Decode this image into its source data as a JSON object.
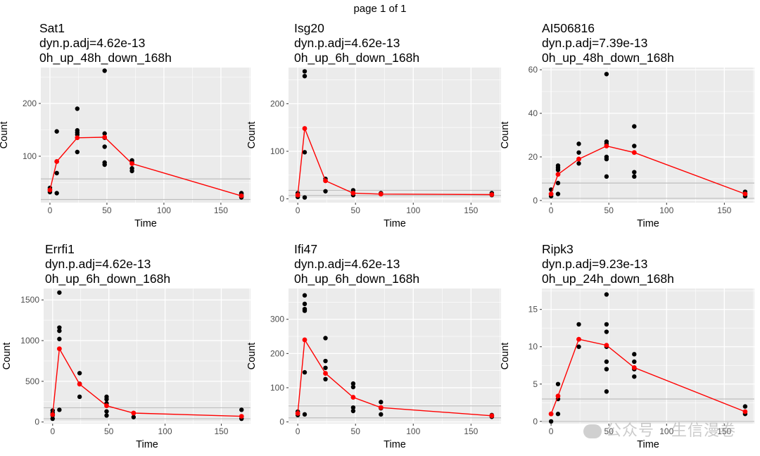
{
  "page_label": "page 1 of 1",
  "watermark": "公众号 · 生信漫卷",
  "colors": {
    "panel_bg": "#EBEBEB",
    "grid": "#FFFFFF",
    "points": "#000000",
    "fit": "#FF0000",
    "hline": "#BEBEBE"
  },
  "chart_data": [
    {
      "type": "scatter",
      "title_lines": [
        "Sat1",
        "dyn.p.adj=4.62e-13",
        "0h_up_48h_down_168h"
      ],
      "xlabel": "Time",
      "ylabel": "Count",
      "xlim": [
        -8,
        176
      ],
      "ylim": [
        12,
        268
      ],
      "xticks": [
        0,
        50,
        100,
        150
      ],
      "yticks": [
        100,
        200
      ],
      "hlines": [
        18,
        57
      ],
      "points": [
        [
          0,
          32
        ],
        [
          0,
          37
        ],
        [
          0,
          40
        ],
        [
          6,
          30
        ],
        [
          6,
          68
        ],
        [
          6,
          90
        ],
        [
          6,
          147
        ],
        [
          24,
          108
        ],
        [
          24,
          141
        ],
        [
          24,
          145
        ],
        [
          24,
          149
        ],
        [
          24,
          190
        ],
        [
          48,
          84
        ],
        [
          48,
          88
        ],
        [
          48,
          118
        ],
        [
          48,
          135
        ],
        [
          48,
          143
        ],
        [
          48,
          262
        ],
        [
          72,
          72
        ],
        [
          72,
          77
        ],
        [
          72,
          88
        ],
        [
          72,
          92
        ],
        [
          168,
          22
        ],
        [
          168,
          24
        ],
        [
          168,
          28
        ],
        [
          168,
          30
        ]
      ],
      "fit": [
        [
          0,
          36
        ],
        [
          6,
          90
        ],
        [
          24,
          135
        ],
        [
          48,
          136
        ],
        [
          72,
          86
        ],
        [
          168,
          25
        ]
      ]
    },
    {
      "type": "scatter",
      "title_lines": [
        "Isg20",
        "dyn.p.adj=4.62e-13",
        "0h_up_6h_down_168h"
      ],
      "xlabel": "Time",
      "ylabel": "Count",
      "xlim": [
        -8,
        176
      ],
      "ylim": [
        -8,
        276
      ],
      "xticks": [
        0,
        50,
        100,
        150
      ],
      "yticks": [
        0,
        100,
        200
      ],
      "hlines": [
        7,
        18
      ],
      "points": [
        [
          0,
          4
        ],
        [
          0,
          8
        ],
        [
          0,
          12
        ],
        [
          6,
          3
        ],
        [
          6,
          98
        ],
        [
          6,
          258
        ],
        [
          6,
          268
        ],
        [
          24,
          16
        ],
        [
          24,
          38
        ],
        [
          24,
          42
        ],
        [
          48,
          8
        ],
        [
          48,
          12
        ],
        [
          48,
          18
        ],
        [
          72,
          10
        ],
        [
          72,
          12
        ],
        [
          168,
          8
        ],
        [
          168,
          12
        ]
      ],
      "fit": [
        [
          0,
          8
        ],
        [
          6,
          148
        ],
        [
          24,
          38
        ],
        [
          48,
          12
        ],
        [
          72,
          10
        ],
        [
          168,
          9
        ]
      ]
    },
    {
      "type": "scatter",
      "title_lines": [
        "AI506816",
        "dyn.p.adj=7.39e-13",
        "0h_up_48h_down_168h"
      ],
      "xlabel": "Time",
      "ylabel": "Count",
      "xlim": [
        -8,
        176
      ],
      "ylim": [
        -1,
        61
      ],
      "xticks": [
        0,
        50,
        100,
        150
      ],
      "yticks": [
        0,
        20,
        40,
        60
      ],
      "hlines": [
        1,
        8
      ],
      "points": [
        [
          0,
          2
        ],
        [
          0,
          3
        ],
        [
          0,
          5
        ],
        [
          6,
          3
        ],
        [
          6,
          8
        ],
        [
          6,
          14
        ],
        [
          6,
          15
        ],
        [
          6,
          16
        ],
        [
          24,
          17
        ],
        [
          24,
          19
        ],
        [
          24,
          22
        ],
        [
          24,
          26
        ],
        [
          48,
          11
        ],
        [
          48,
          19
        ],
        [
          48,
          20
        ],
        [
          48,
          26
        ],
        [
          48,
          27
        ],
        [
          48,
          58
        ],
        [
          72,
          11
        ],
        [
          72,
          13
        ],
        [
          72,
          25
        ],
        [
          72,
          34
        ],
        [
          168,
          2
        ],
        [
          168,
          3
        ],
        [
          168,
          4
        ]
      ],
      "fit": [
        [
          0,
          3
        ],
        [
          6,
          12
        ],
        [
          24,
          19
        ],
        [
          48,
          25
        ],
        [
          72,
          22
        ],
        [
          168,
          3
        ]
      ]
    },
    {
      "type": "scatter",
      "title_lines": [
        "Errfi1",
        "dyn.p.adj=4.62e-13",
        "0h_up_6h_down_168h"
      ],
      "xlabel": "Time",
      "ylabel": "Count",
      "xlim": [
        -8,
        176
      ],
      "ylim": [
        -20,
        1640
      ],
      "xticks": [
        0,
        50,
        100,
        150
      ],
      "yticks": [
        0,
        500,
        1000,
        1500
      ],
      "hlines": [
        40,
        175
      ],
      "points": [
        [
          0,
          40
        ],
        [
          0,
          80
        ],
        [
          0,
          110
        ],
        [
          0,
          140
        ],
        [
          6,
          150
        ],
        [
          6,
          1020
        ],
        [
          6,
          1120
        ],
        [
          6,
          1160
        ],
        [
          6,
          1590
        ],
        [
          24,
          310
        ],
        [
          24,
          470
        ],
        [
          24,
          600
        ],
        [
          48,
          80
        ],
        [
          48,
          130
        ],
        [
          48,
          230
        ],
        [
          48,
          280
        ],
        [
          48,
          310
        ],
        [
          72,
          60
        ],
        [
          72,
          110
        ],
        [
          168,
          40
        ],
        [
          168,
          150
        ]
      ],
      "fit": [
        [
          0,
          90
        ],
        [
          6,
          900
        ],
        [
          24,
          465
        ],
        [
          48,
          200
        ],
        [
          72,
          110
        ],
        [
          168,
          70
        ]
      ]
    },
    {
      "type": "scatter",
      "title_lines": [
        "Ifi47",
        "dyn.p.adj=4.62e-13",
        "0h_up_6h_down_168h"
      ],
      "xlabel": "Time",
      "ylabel": "Count",
      "xlim": [
        -8,
        176
      ],
      "ylim": [
        -5,
        390
      ],
      "xticks": [
        0,
        50,
        100,
        150
      ],
      "yticks": [
        0,
        100,
        200,
        300
      ],
      "hlines": [
        12,
        47
      ],
      "points": [
        [
          0,
          20
        ],
        [
          0,
          25
        ],
        [
          0,
          30
        ],
        [
          6,
          22
        ],
        [
          6,
          145
        ],
        [
          6,
          325
        ],
        [
          6,
          330
        ],
        [
          6,
          345
        ],
        [
          6,
          370
        ],
        [
          24,
          125
        ],
        [
          24,
          158
        ],
        [
          24,
          178
        ],
        [
          24,
          245
        ],
        [
          48,
          32
        ],
        [
          48,
          42
        ],
        [
          48,
          102
        ],
        [
          48,
          112
        ],
        [
          72,
          22
        ],
        [
          72,
          40
        ],
        [
          72,
          58
        ],
        [
          168,
          15
        ],
        [
          168,
          20
        ]
      ],
      "fit": [
        [
          0,
          25
        ],
        [
          6,
          240
        ],
        [
          24,
          142
        ],
        [
          48,
          72
        ],
        [
          72,
          42
        ],
        [
          168,
          18
        ]
      ]
    },
    {
      "type": "scatter",
      "title_lines": [
        "Ripk3",
        "dyn.p.adj=9.23e-13",
        "0h_up_24h_down_168h"
      ],
      "xlabel": "Time",
      "ylabel": "Count",
      "xlim": [
        -8,
        176
      ],
      "ylim": [
        -0.3,
        17.8
      ],
      "xticks": [
        0,
        50,
        100,
        150
      ],
      "yticks": [
        0,
        5,
        10,
        15
      ],
      "hlines": [
        0,
        3
      ],
      "points": [
        [
          0,
          0
        ],
        [
          0,
          1
        ],
        [
          6,
          1
        ],
        [
          6,
          3
        ],
        [
          6,
          5
        ],
        [
          24,
          10
        ],
        [
          24,
          11
        ],
        [
          24,
          13
        ],
        [
          48,
          4
        ],
        [
          48,
          7
        ],
        [
          48,
          8
        ],
        [
          48,
          10
        ],
        [
          48,
          12
        ],
        [
          48,
          13
        ],
        [
          48,
          17
        ],
        [
          72,
          6
        ],
        [
          72,
          7
        ],
        [
          72,
          8
        ],
        [
          72,
          9
        ],
        [
          168,
          1
        ],
        [
          168,
          2
        ]
      ],
      "fit": [
        [
          0,
          1
        ],
        [
          6,
          3.4
        ],
        [
          24,
          11
        ],
        [
          48,
          10.2
        ],
        [
          72,
          7.2
        ],
        [
          168,
          1.3
        ]
      ]
    }
  ]
}
